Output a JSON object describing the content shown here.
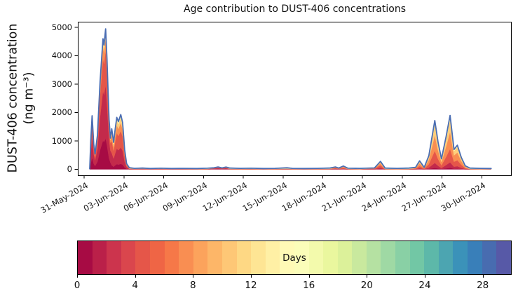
{
  "title": "Age contribution to DUST-406 concentrations",
  "y_axis": {
    "label_line1": "DUST-406 concentration",
    "label_line2": "(ng m⁻³)"
  },
  "chart_data": {
    "type": "stacked-area",
    "title": "Age contribution to DUST-406 concentrations",
    "ylabel": "DUST-406 concentration (ng m⁻³)",
    "xlabel": "",
    "grid": false,
    "xlim_days": [
      -0.48,
      32.25
    ],
    "ylim": [
      -210,
      5200
    ],
    "y_ticks": [
      0,
      1000,
      2000,
      3000,
      4000,
      5000
    ],
    "x_ticks": [
      {
        "day": 0,
        "label": "31-May-2024"
      },
      {
        "day": 3,
        "label": "03-Jun-2024"
      },
      {
        "day": 6,
        "label": "06-Jun-2024"
      },
      {
        "day": 9,
        "label": "09-Jun-2024"
      },
      {
        "day": 12,
        "label": "12-Jun-2024"
      },
      {
        "day": 15,
        "label": "15-Jun-2024"
      },
      {
        "day": 18,
        "label": "18-Jun-2024"
      },
      {
        "day": 21,
        "label": "21-Jun-2024"
      },
      {
        "day": 24,
        "label": "24-Jun-2024"
      },
      {
        "day": 27,
        "label": "27-Jun-2024"
      },
      {
        "day": 30,
        "label": "30-Jun-2024"
      }
    ],
    "line_color": "#4a6db3",
    "age_layer_center_days": [
      0.5,
      2,
      4.5,
      7.5,
      11,
      15.5,
      21,
      27
    ],
    "profiles": {
      "fresh": [
        0.22,
        0.38,
        0.25,
        0.09,
        0.04,
        0.02,
        0.0,
        0.0
      ],
      "fresh2": [
        0.1,
        0.3,
        0.3,
        0.15,
        0.1,
        0.05,
        0.0,
        0.0
      ],
      "mid": [
        0.03,
        0.1,
        0.25,
        0.32,
        0.22,
        0.08,
        0.0,
        0.0
      ],
      "aged": [
        0.05,
        0.12,
        0.2,
        0.22,
        0.18,
        0.12,
        0.08,
        0.03
      ],
      "old": [
        0.03,
        0.07,
        0.12,
        0.14,
        0.16,
        0.18,
        0.18,
        0.12
      ],
      "vold": [
        0.02,
        0.05,
        0.08,
        0.1,
        0.12,
        0.15,
        0.22,
        0.26
      ],
      "bump_red": [
        0.18,
        0.3,
        0.24,
        0.14,
        0.08,
        0.04,
        0.01,
        0.01
      ],
      "bump_mid": [
        0.06,
        0.16,
        0.3,
        0.26,
        0.14,
        0.06,
        0.01,
        0.01
      ]
    },
    "series_points": [
      [
        0.42,
        20,
        "fresh"
      ],
      [
        0.5,
        1000,
        "fresh"
      ],
      [
        0.6,
        1890,
        "fresh"
      ],
      [
        0.72,
        900,
        "fresh"
      ],
      [
        0.82,
        540,
        "fresh"
      ],
      [
        1.0,
        1200,
        "fresh"
      ],
      [
        1.2,
        3100,
        "fresh"
      ],
      [
        1.42,
        4600,
        "fresh"
      ],
      [
        1.5,
        4380,
        "fresh"
      ],
      [
        1.62,
        4950,
        "fresh"
      ],
      [
        1.72,
        3900,
        "fresh"
      ],
      [
        1.8,
        2800,
        "fresh"
      ],
      [
        1.88,
        1760,
        "fresh"
      ],
      [
        1.98,
        1100,
        "fresh"
      ],
      [
        2.08,
        1430,
        "fresh2"
      ],
      [
        2.22,
        950,
        "fresh2"
      ],
      [
        2.35,
        1450,
        "fresh2"
      ],
      [
        2.46,
        1830,
        "fresh2"
      ],
      [
        2.58,
        1680,
        "fresh2"
      ],
      [
        2.76,
        1930,
        "fresh2"
      ],
      [
        2.9,
        1650,
        "fresh2"
      ],
      [
        3.05,
        700,
        "fresh2"
      ],
      [
        3.2,
        200,
        "fresh2"
      ],
      [
        3.4,
        60,
        "aged"
      ],
      [
        3.8,
        35,
        "aged"
      ],
      [
        4.4,
        45,
        "aged"
      ],
      [
        5.0,
        30,
        "aged"
      ],
      [
        5.8,
        40,
        "aged"
      ],
      [
        6.6,
        30,
        "aged"
      ],
      [
        7.5,
        35,
        "aged"
      ],
      [
        8.5,
        30,
        "old"
      ],
      [
        9.3,
        40,
        "old"
      ],
      [
        9.8,
        55,
        "bump_red"
      ],
      [
        10.1,
        85,
        "bump_red"
      ],
      [
        10.4,
        50,
        "bump_red"
      ],
      [
        10.7,
        80,
        "bump_red"
      ],
      [
        11.0,
        45,
        "old"
      ],
      [
        11.8,
        35,
        "old"
      ],
      [
        12.6,
        40,
        "old"
      ],
      [
        13.5,
        30,
        "old"
      ],
      [
        14.4,
        35,
        "old"
      ],
      [
        15.3,
        55,
        "old"
      ],
      [
        15.7,
        35,
        "old"
      ],
      [
        16.6,
        30,
        "old"
      ],
      [
        17.6,
        35,
        "old"
      ],
      [
        18.5,
        45,
        "old"
      ],
      [
        18.95,
        85,
        "bump_mid"
      ],
      [
        19.2,
        45,
        "bump_mid"
      ],
      [
        19.55,
        115,
        "bump_mid"
      ],
      [
        19.9,
        40,
        "old"
      ],
      [
        20.8,
        35,
        "vold"
      ],
      [
        21.9,
        50,
        "bump_mid"
      ],
      [
        22.35,
        280,
        "bump_mid"
      ],
      [
        22.7,
        45,
        "vold"
      ],
      [
        23.6,
        35,
        "vold"
      ],
      [
        24.5,
        45,
        "vold"
      ],
      [
        25.0,
        70,
        "mid"
      ],
      [
        25.3,
        300,
        "mid"
      ],
      [
        25.65,
        70,
        "mid"
      ],
      [
        26.0,
        480,
        "mid"
      ],
      [
        26.45,
        1720,
        "mid"
      ],
      [
        26.7,
        950,
        "mid"
      ],
      [
        26.95,
        370,
        "mid"
      ],
      [
        27.3,
        1150,
        "mid"
      ],
      [
        27.6,
        1900,
        "mid"
      ],
      [
        27.9,
        700,
        "mid"
      ],
      [
        28.15,
        850,
        "mid"
      ],
      [
        28.45,
        420,
        "mid"
      ],
      [
        28.75,
        120,
        "mid"
      ],
      [
        29.1,
        45,
        "vold"
      ],
      [
        29.9,
        35,
        "vold"
      ],
      [
        30.7,
        30,
        "vold"
      ]
    ],
    "colorbar": {
      "label": "Days",
      "min": 0,
      "max": 30,
      "segments": 30,
      "ticks": [
        0,
        4,
        8,
        12,
        16,
        20,
        24,
        28
      ],
      "spectral_anchors": [
        "#9e0142",
        "#d53e4f",
        "#f46d43",
        "#fdae61",
        "#fee08b",
        "#ffffbf",
        "#e6f598",
        "#abdda4",
        "#66c2a5",
        "#3288bd",
        "#5e4fa2"
      ]
    }
  }
}
